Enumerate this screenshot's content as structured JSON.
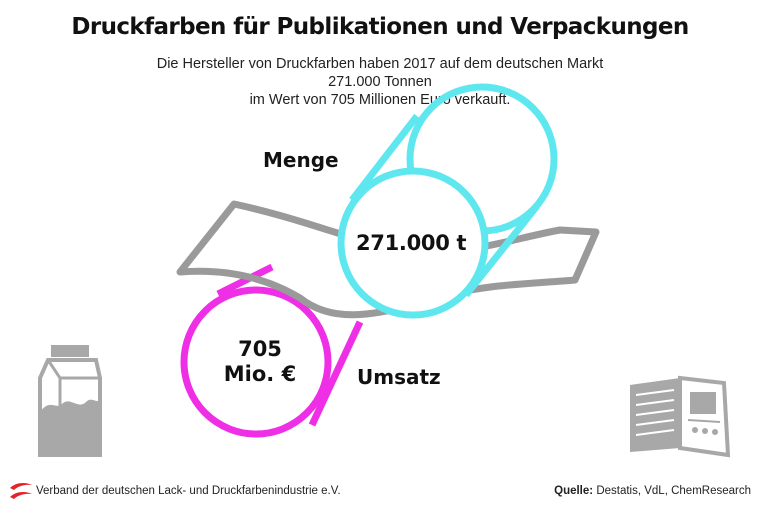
{
  "header": {
    "title": "Druckfarben für Publikationen und Verpackungen",
    "subtitle_line1": "Die Hersteller von Druckfarben haben 2017 auf dem deutschen Markt 271.000 Tonnen",
    "subtitle_line2": "im Wert von 705 Millionen Euro verkauft."
  },
  "graphic": {
    "menge_label": "Menge",
    "menge_value": "271.000 t",
    "umsatz_label": "Umsatz",
    "umsatz_value_line1": "705",
    "umsatz_value_line2": "Mio. €",
    "icons": [
      "milk-carton-icon",
      "magazine-icon",
      "print-roller-icon",
      "paper-web-icon"
    ]
  },
  "colors": {
    "menge_roll": "#5ee7ef",
    "umsatz_roll": "#ee2fe6",
    "paper_web": "#9a9a9a",
    "icons": "#a8a8a8",
    "logo_red": "#e3232c"
  },
  "footer": {
    "organization": "Verband der deutschen Lack- und Druckfarbenindustrie e.V.",
    "source_label": "Quelle:",
    "source_text": "Destatis, VdL, ChemResearch"
  }
}
